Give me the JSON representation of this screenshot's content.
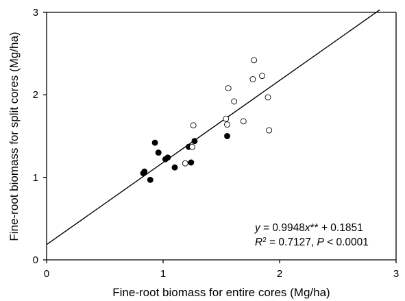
{
  "chart_data": {
    "type": "scatter",
    "xlabel": "Fine-root biomass for entire cores (Mg/ha)",
    "ylabel": "Fine-root biomass for split cores (Mg/ha)",
    "xlim": [
      0,
      3
    ],
    "ylim": [
      0,
      3
    ],
    "x_ticks": [
      "0",
      "1",
      "2",
      "3"
    ],
    "y_ticks": [
      "0",
      "1",
      "2",
      "3"
    ],
    "grid": false,
    "series": [
      {
        "marker": "filled-circle",
        "points": [
          [
            0.83,
            1.05
          ],
          [
            0.84,
            1.07
          ],
          [
            0.89,
            0.97
          ],
          [
            0.93,
            1.42
          ],
          [
            0.96,
            1.3
          ],
          [
            1.02,
            1.22
          ],
          [
            1.04,
            1.24
          ],
          [
            1.1,
            1.12
          ],
          [
            1.22,
            1.37
          ],
          [
            1.24,
            1.18
          ],
          [
            1.27,
            1.44
          ],
          [
            1.55,
            1.5
          ]
        ]
      },
      {
        "marker": "open-circle",
        "points": [
          [
            1.19,
            1.17
          ],
          [
            1.25,
            1.37
          ],
          [
            1.26,
            1.63
          ],
          [
            1.54,
            1.71
          ],
          [
            1.55,
            1.64
          ],
          [
            1.56,
            2.08
          ],
          [
            1.61,
            1.92
          ],
          [
            1.69,
            1.68
          ],
          [
            1.77,
            2.19
          ],
          [
            1.78,
            2.42
          ],
          [
            1.85,
            2.23
          ],
          [
            1.9,
            1.97
          ],
          [
            1.91,
            1.57
          ]
        ]
      }
    ],
    "regression": {
      "slope": 0.9948,
      "intercept": 0.1851,
      "x_range": [
        0,
        2.86
      ]
    },
    "annotations": {
      "eq_y": "y",
      "eq_mid": " = 0.9948",
      "eq_x": "x",
      "eq_tail": "** + 0.1851",
      "r_label": "R",
      "r_sup": "2",
      "r_mid": " = 0.7127, ",
      "p_label": "P",
      "p_tail": " < 0.0001"
    }
  }
}
